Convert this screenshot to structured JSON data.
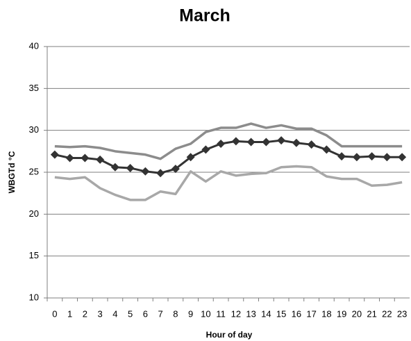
{
  "chart_data": {
    "type": "line",
    "title": "March",
    "x_label": "Hour of day",
    "y_label": "WBGTd °C",
    "categories": [
      "0",
      "1",
      "2",
      "3",
      "4",
      "5",
      "6",
      "7",
      "8",
      "9",
      "10",
      "11",
      "12",
      "13",
      "14",
      "15",
      "16",
      "17",
      "18",
      "19",
      "20",
      "21",
      "22",
      "23"
    ],
    "series": [
      {
        "color": "#8c8c8c",
        "values": [
          28.1,
          28.0,
          28.1,
          27.9,
          27.5,
          27.3,
          27.1,
          26.6,
          27.8,
          28.4,
          29.8,
          30.3,
          30.3,
          30.8,
          30.3,
          30.6,
          30.2,
          30.2,
          29.4,
          28.1,
          28.1,
          28.1,
          28.1,
          28.1
        ]
      },
      {
        "color": "#a8a8a8",
        "values": [
          24.4,
          24.2,
          24.4,
          23.1,
          22.3,
          21.7,
          21.7,
          22.7,
          22.4,
          25.1,
          23.9,
          25.1,
          24.6,
          24.8,
          24.9,
          25.6,
          25.7,
          25.6,
          24.5,
          24.2,
          24.2,
          23.4,
          23.5,
          23.8
        ]
      },
      {
        "color": "#333333",
        "marker": "diamond",
        "values": [
          27.1,
          26.7,
          26.7,
          26.5,
          25.6,
          25.5,
          25.1,
          24.9,
          25.4,
          26.8,
          27.7,
          28.4,
          28.7,
          28.6,
          28.6,
          28.8,
          28.5,
          28.3,
          27.7,
          26.9,
          26.8,
          26.9,
          26.8,
          26.8
        ]
      }
    ],
    "ylim": [
      10,
      40
    ],
    "yticks": [
      10,
      15,
      20,
      25,
      30,
      35,
      40
    ],
    "grid": true
  }
}
